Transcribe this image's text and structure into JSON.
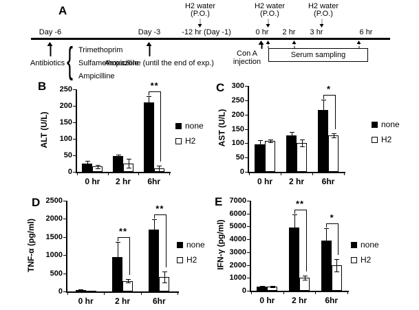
{
  "colors": {
    "bar_none": "#000000",
    "bar_h2": "#ffffff",
    "axis": "#000000",
    "background": "#ffffff"
  },
  "timeline": {
    "panel_letter": "A",
    "h2_water_events": [
      {
        "line1": "H2 water",
        "line2": "(P.O.)"
      },
      {
        "line1": "H2 water",
        "line2": "(P.O.)"
      },
      {
        "line1": "H2 water",
        "line2": "(P.O.)"
      }
    ],
    "ticks": [
      {
        "label": "Day -6"
      },
      {
        "label": "Day -3"
      },
      {
        "label": "-12 hr (Day -1)"
      },
      {
        "label": "0 hr"
      },
      {
        "label": "2 hr"
      },
      {
        "label": "3 hr"
      },
      {
        "label": "6 hr"
      }
    ],
    "antibiotics_label": "Antibiotics",
    "antibiotics_drugs": [
      "Trimethoprim",
      "Sulfamethoxazole",
      "Ampicilline"
    ],
    "ampicilline_note": "Ampicilline (until the end of exp.)",
    "con_a_injection": [
      "Con A",
      "injection"
    ],
    "serum_sampling_label": "Serum sampling"
  },
  "chart_data": [
    {
      "panel_letter": "B",
      "type": "bar",
      "ylabel": "ALT (U/L)",
      "categories": [
        "0 hr",
        "2 hr",
        "6hr"
      ],
      "series": [
        {
          "name": "none",
          "fill": "#000000",
          "values": [
            25,
            47,
            210
          ],
          "errors": [
            8,
            6,
            20
          ]
        },
        {
          "name": "H2",
          "fill": "#ffffff",
          "values": [
            16,
            26,
            10
          ],
          "errors": [
            5,
            14,
            9
          ]
        }
      ],
      "ylim": [
        0,
        250
      ],
      "yticks": [
        0,
        50,
        100,
        150,
        200,
        250
      ],
      "legend_position": "right",
      "legend": [
        "none",
        "H2"
      ],
      "grid": false,
      "significance": [
        {
          "category": "6hr",
          "series_pair": [
            "none",
            "H2"
          ],
          "label": "**"
        }
      ]
    },
    {
      "panel_letter": "C",
      "type": "bar",
      "ylabel": "AST (U/L)",
      "categories": [
        "0 hr",
        "2 hr",
        "6hr"
      ],
      "series": [
        {
          "name": "none",
          "fill": "#000000",
          "values": [
            95,
            128,
            215
          ],
          "errors": [
            15,
            12,
            38
          ]
        },
        {
          "name": "H2",
          "fill": "#ffffff",
          "values": [
            108,
            100,
            127
          ],
          "errors": [
            5,
            12,
            8
          ]
        }
      ],
      "ylim": [
        0,
        300
      ],
      "yticks": [
        0,
        50,
        100,
        150,
        200,
        250,
        300
      ],
      "legend_position": "right",
      "legend": [
        "none",
        "H2"
      ],
      "grid": false,
      "significance": [
        {
          "category": "6hr",
          "series_pair": [
            "none",
            "H2"
          ],
          "label": "*"
        }
      ]
    },
    {
      "panel_letter": "D",
      "type": "bar",
      "ylabel": "TNF-α (pg/ml)",
      "categories": [
        "0 hr",
        "2 hr",
        "6hr"
      ],
      "series": [
        {
          "name": "none",
          "fill": "#000000",
          "values": [
            30,
            950,
            1700
          ],
          "errors": [
            25,
            420,
            280
          ]
        },
        {
          "name": "H2",
          "fill": "#ffffff",
          "values": [
            15,
            290,
            400
          ],
          "errors": [
            8,
            45,
            150
          ]
        }
      ],
      "ylim": [
        0,
        2500
      ],
      "yticks": [
        0,
        500,
        1000,
        1500,
        2000,
        2500
      ],
      "legend_position": "right",
      "legend": [
        "none",
        "H2"
      ],
      "grid": false,
      "significance": [
        {
          "category": "2 hr",
          "series_pair": [
            "none",
            "H2"
          ],
          "label": "**"
        },
        {
          "category": "6hr",
          "series_pair": [
            "none",
            "H2"
          ],
          "label": "**"
        }
      ]
    },
    {
      "panel_letter": "E",
      "type": "bar",
      "ylabel": "IFN-γ (pg/ml)",
      "categories": [
        "0 hr",
        "2 hr",
        "6hr"
      ],
      "series": [
        {
          "name": "none",
          "fill": "#000000",
          "values": [
            330,
            4900,
            3900
          ],
          "errors": [
            60,
            1050,
            950
          ]
        },
        {
          "name": "H2",
          "fill": "#ffffff",
          "values": [
            330,
            1000,
            2000
          ],
          "errors": [
            70,
            170,
            480
          ]
        }
      ],
      "ylim": [
        0,
        7000
      ],
      "yticks": [
        0,
        1000,
        2000,
        3000,
        4000,
        5000,
        6000,
        7000
      ],
      "legend_position": "right",
      "legend": [
        "none",
        "H2"
      ],
      "grid": false,
      "significance": [
        {
          "category": "2 hr",
          "series_pair": [
            "none",
            "H2"
          ],
          "label": "**"
        },
        {
          "category": "6hr",
          "series_pair": [
            "none",
            "H2"
          ],
          "label": "*"
        }
      ]
    }
  ]
}
